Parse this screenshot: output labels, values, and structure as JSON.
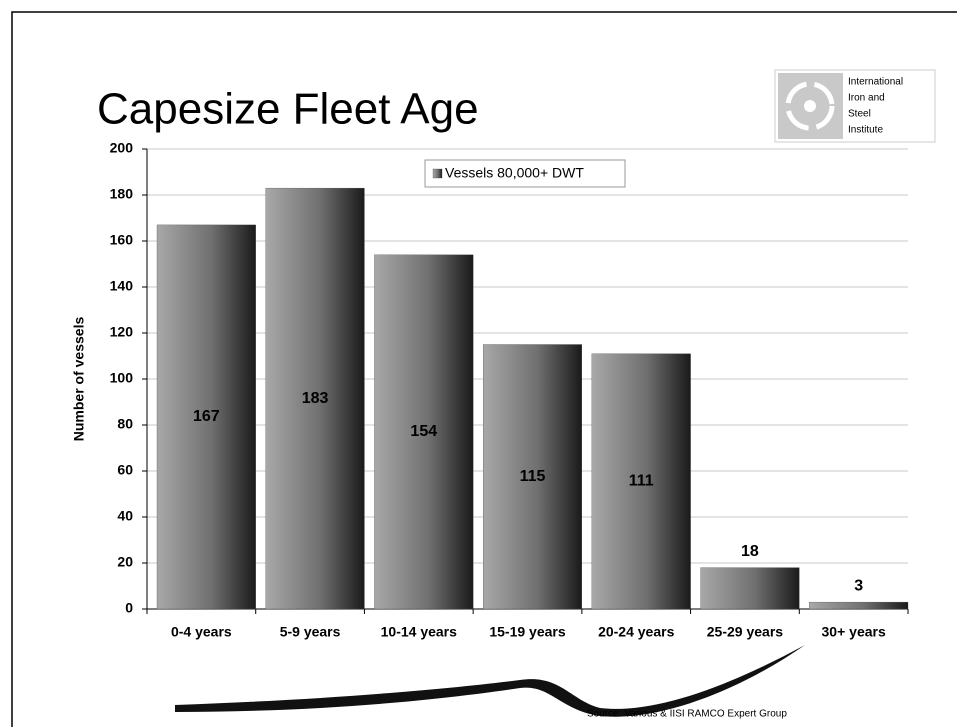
{
  "chart_data": {
    "type": "bar",
    "title": "Capesize Fleet Age",
    "y_label": "Number of vessels",
    "categories": [
      "0-4 years",
      "5-9 years",
      "10-14 years",
      "15-19 years",
      "20-24 years",
      "25-29 years",
      "30+ years"
    ],
    "series": [
      {
        "name": "Vessels 80,000+ DWT",
        "color": "#444444",
        "values": [
          167,
          183,
          154,
          115,
          111,
          18,
          3
        ]
      }
    ],
    "ylim": [
      0,
      200
    ],
    "yticks": [
      0,
      20,
      40,
      60,
      80,
      100,
      120,
      140,
      160,
      180,
      200
    ],
    "grid": true,
    "legend": "top",
    "logo_text": [
      "International",
      "Iron and",
      "Steel",
      "Institute"
    ],
    "source": "Source: Various & IISI RAMCO Expert Group"
  }
}
